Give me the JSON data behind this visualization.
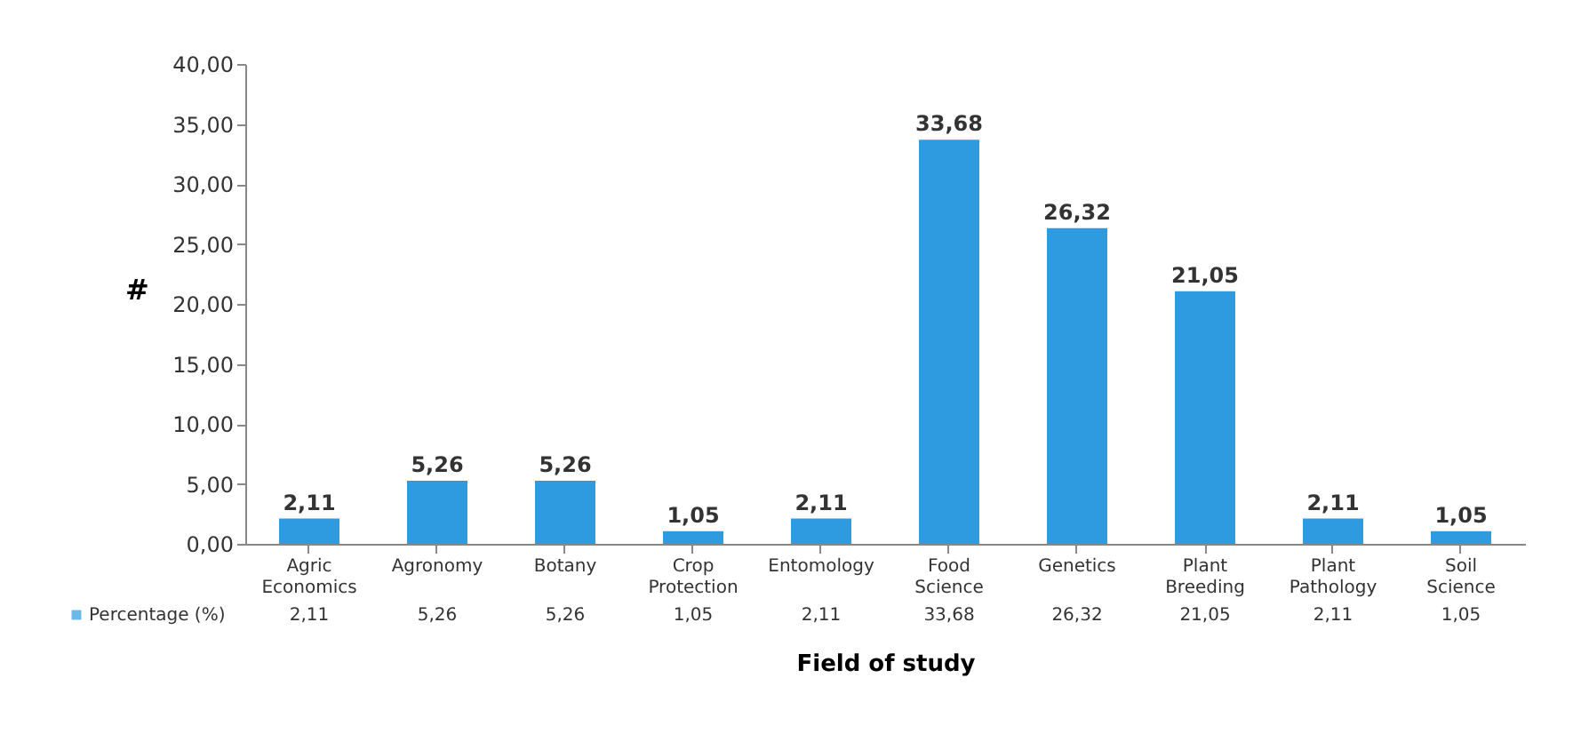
{
  "chart_data": {
    "type": "bar",
    "xlabel": "Field of study",
    "ylabel": "#",
    "categories": [
      "Agric Economics",
      "Agronomy",
      "Botany",
      "Crop Protection",
      "Entomology",
      "Food Science",
      "Genetics",
      "Plant Breeding",
      "Plant Pathology",
      "Soil Science"
    ],
    "series": [
      {
        "name": "Percentage (%)",
        "color": "#2e9be0",
        "values": [
          2.11,
          5.26,
          5.26,
          1.05,
          2.11,
          33.68,
          26.32,
          21.05,
          2.11,
          1.05
        ],
        "value_labels": [
          "2,11",
          "5,26",
          "5,26",
          "1,05",
          "2,11",
          "33,68",
          "26,32",
          "21,05",
          "2,11",
          "1,05"
        ]
      }
    ],
    "ylim": [
      0,
      40
    ],
    "yticks": [
      {
        "value": 0,
        "label": "0,00"
      },
      {
        "value": 5,
        "label": "5,00"
      },
      {
        "value": 10,
        "label": "10,00"
      },
      {
        "value": 15,
        "label": "15,00"
      },
      {
        "value": 20,
        "label": "20,00"
      },
      {
        "value": 25,
        "label": "25,00"
      },
      {
        "value": 30,
        "label": "30,00"
      },
      {
        "value": 35,
        "label": "35,00"
      },
      {
        "value": 40,
        "label": "40,00"
      }
    ],
    "legend": "bottom left",
    "grid": false
  }
}
